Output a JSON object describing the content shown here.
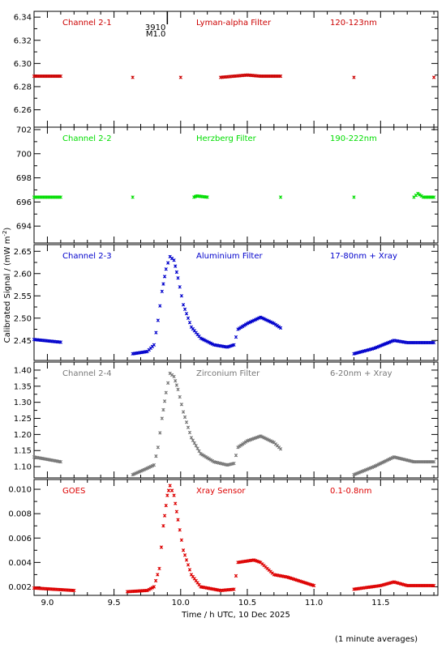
{
  "ylabel": "Calibrated Signal / (mW m",
  "ylabel_sup": "-2",
  "ylabel_end": ")",
  "xlabel": "Time / h UTC, 10 Dec 2025",
  "footnote": "(1 minute averages)",
  "marker": {
    "line1": "3910",
    "line2": "M1.0",
    "x": 9.9
  },
  "chart_data": [
    {
      "type": "scatter",
      "channel": "Channel 2-1",
      "filter": "Lyman-alpha Filter",
      "band": "120-123nm",
      "color": "#cc0000",
      "ylim": [
        6.245,
        6.345
      ],
      "yticks": [
        6.26,
        6.28,
        6.3,
        6.32,
        6.34
      ],
      "ytick_labels": [
        "6.26",
        "6.28",
        "6.30",
        "6.32",
        "6.34"
      ],
      "points": [
        [
          8.9,
          6.289
        ],
        [
          9.1,
          6.289
        ],
        [
          9.64,
          6.288
        ],
        [
          10.0,
          6.288
        ],
        [
          10.3,
          6.288
        ],
        [
          10.4,
          6.289
        ],
        [
          10.5,
          6.29
        ],
        [
          10.6,
          6.289
        ],
        [
          10.75,
          6.289
        ],
        [
          11.3,
          6.288
        ],
        [
          11.9,
          6.288
        ]
      ]
    },
    {
      "type": "scatter",
      "channel": "Channel 2-2",
      "filter": "Herzberg Filter",
      "band": "190-222nm",
      "color": "#00dd00",
      "ylim": [
        692.6,
        702.2
      ],
      "yticks": [
        694,
        696,
        698,
        700,
        702
      ],
      "ytick_labels": [
        "694",
        "696",
        "698",
        "700",
        "702"
      ],
      "points": [
        [
          8.9,
          696.4
        ],
        [
          9.1,
          696.4
        ],
        [
          9.64,
          696.4
        ],
        [
          10.1,
          696.4
        ],
        [
          10.12,
          696.5
        ],
        [
          10.2,
          696.4
        ],
        [
          10.75,
          696.4
        ],
        [
          11.3,
          696.4
        ],
        [
          11.75,
          696.4
        ],
        [
          11.78,
          696.7
        ],
        [
          11.82,
          696.4
        ],
        [
          11.9,
          696.4
        ]
      ]
    },
    {
      "type": "scatter",
      "channel": "Channel 2-3",
      "filter": "Aluminium Filter",
      "band": "17-80nm + Xray",
      "color": "#0000cc",
      "ylim": [
        2.405,
        2.665
      ],
      "yticks": [
        2.45,
        2.5,
        2.55,
        2.6,
        2.65
      ],
      "ytick_labels": [
        "2.45",
        "2.50",
        "2.55",
        "2.60",
        "2.65"
      ],
      "points": [
        [
          8.9,
          2.452
        ],
        [
          9.1,
          2.446
        ],
        [
          9.64,
          2.42
        ],
        [
          9.75,
          2.425
        ],
        [
          9.8,
          2.44
        ],
        [
          9.83,
          2.495
        ],
        [
          9.86,
          2.56
        ],
        [
          9.89,
          2.61
        ],
        [
          9.92,
          2.638
        ],
        [
          9.95,
          2.63
        ],
        [
          9.98,
          2.59
        ],
        [
          10.02,
          2.53
        ],
        [
          10.08,
          2.48
        ],
        [
          10.15,
          2.455
        ],
        [
          10.25,
          2.44
        ],
        [
          10.35,
          2.435
        ],
        [
          10.4,
          2.44
        ],
        [
          10.43,
          2.475
        ],
        [
          10.5,
          2.488
        ],
        [
          10.6,
          2.502
        ],
        [
          10.7,
          2.488
        ],
        [
          10.75,
          2.478
        ],
        [
          11.3,
          2.42
        ],
        [
          11.45,
          2.432
        ],
        [
          11.6,
          2.45
        ],
        [
          11.7,
          2.445
        ],
        [
          11.9,
          2.445
        ]
      ]
    },
    {
      "type": "scatter",
      "channel": "Channel 2-4",
      "filter": "Zirconium Filter",
      "band": "6-20nm + Xray",
      "color": "#777777",
      "ylim": [
        1.065,
        1.425
      ],
      "yticks": [
        1.1,
        1.15,
        1.2,
        1.25,
        1.3,
        1.35,
        1.4
      ],
      "ytick_labels": [
        "1.10",
        "1.15",
        "1.20",
        "1.25",
        "1.30",
        "1.35",
        "1.40"
      ],
      "points": [
        [
          8.9,
          1.13
        ],
        [
          9.1,
          1.115
        ],
        [
          9.64,
          1.075
        ],
        [
          9.75,
          1.095
        ],
        [
          9.8,
          1.105
        ],
        [
          9.83,
          1.16
        ],
        [
          9.86,
          1.25
        ],
        [
          9.89,
          1.33
        ],
        [
          9.92,
          1.39
        ],
        [
          9.95,
          1.38
        ],
        [
          9.98,
          1.34
        ],
        [
          10.02,
          1.27
        ],
        [
          10.08,
          1.19
        ],
        [
          10.15,
          1.14
        ],
        [
          10.25,
          1.115
        ],
        [
          10.35,
          1.105
        ],
        [
          10.4,
          1.11
        ],
        [
          10.43,
          1.16
        ],
        [
          10.5,
          1.18
        ],
        [
          10.6,
          1.195
        ],
        [
          10.7,
          1.175
        ],
        [
          10.75,
          1.155
        ],
        [
          11.3,
          1.075
        ],
        [
          11.45,
          1.1
        ],
        [
          11.6,
          1.13
        ],
        [
          11.75,
          1.115
        ],
        [
          11.9,
          1.115
        ]
      ]
    },
    {
      "type": "scatter",
      "channel": "GOES",
      "filter": "Xray Sensor",
      "band": "0.1-0.8nm",
      "color": "#dd0000",
      "ylim": [
        0.0013,
        0.0108
      ],
      "yticks": [
        0.002,
        0.004,
        0.006,
        0.008,
        0.01
      ],
      "ytick_labels": [
        "0.002",
        "0.004",
        "0.006",
        "0.008",
        "0.010"
      ],
      "points": [
        [
          8.9,
          0.0019
        ],
        [
          9.2,
          0.0017
        ],
        [
          9.6,
          0.0016
        ],
        [
          9.75,
          0.0017
        ],
        [
          9.8,
          0.002
        ],
        [
          9.84,
          0.0035
        ],
        [
          9.87,
          0.007
        ],
        [
          9.9,
          0.0095
        ],
        [
          9.92,
          0.0103
        ],
        [
          9.95,
          0.0095
        ],
        [
          9.98,
          0.0075
        ],
        [
          10.02,
          0.005
        ],
        [
          10.08,
          0.003
        ],
        [
          10.15,
          0.002
        ],
        [
          10.3,
          0.0017
        ],
        [
          10.4,
          0.0018
        ],
        [
          10.43,
          0.004
        ],
        [
          10.55,
          0.0042
        ],
        [
          10.6,
          0.004
        ],
        [
          10.7,
          0.003
        ],
        [
          10.8,
          0.0028
        ],
        [
          11.0,
          0.0021
        ],
        [
          11.3,
          0.0018
        ],
        [
          11.5,
          0.0021
        ],
        [
          11.6,
          0.0024
        ],
        [
          11.7,
          0.0021
        ],
        [
          11.9,
          0.0021
        ]
      ]
    }
  ],
  "x_axis": {
    "xlim": [
      8.9,
      11.93
    ],
    "ticks": [
      9.0,
      9.5,
      10.0,
      10.5,
      11.0,
      11.5
    ],
    "tick_labels": [
      "9.0",
      "9.5",
      "10.0",
      "10.5",
      "11.0",
      "11.5"
    ]
  }
}
